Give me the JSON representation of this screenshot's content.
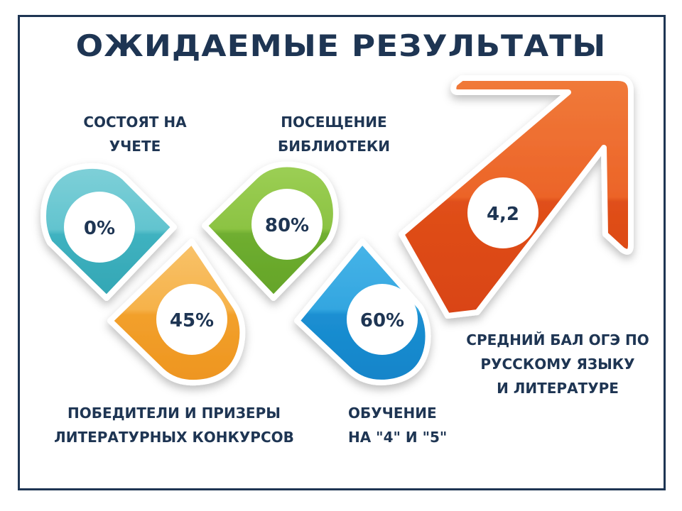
{
  "title": "ОЖИДАЕМЫЕ РЕЗУЛЬТАТЫ",
  "items": [
    {
      "value": "0%",
      "label_lines": [
        "СОСТОЯТ НА",
        "УЧЕТЕ"
      ],
      "color": "#4fc0cc"
    },
    {
      "value": "45%",
      "label_lines": [
        "ПОБЕДИТЕЛИ И ПРИЗЕРЫ",
        "ЛИТЕРАТУРНЫХ КОНКУРСОВ"
      ],
      "color": "#f5a833"
    },
    {
      "value": "80%",
      "label_lines": [
        "ПОСЕЩЕНИЕ",
        "БИБЛИОТЕКИ"
      ],
      "color": "#7cbf3a"
    },
    {
      "value": "60%",
      "label_lines": [
        "ОБУЧЕНИЕ",
        "НА \"4\" И \"5\""
      ],
      "color": "#2196d8"
    },
    {
      "value": "4,2",
      "label_lines": [
        "СРЕДНИЙ БАЛ ОГЭ ПО",
        "РУССКОМУ ЯЗЫКУ",
        "И ЛИТЕРАТУРЕ"
      ],
      "color": "#ec5d24"
    }
  ],
  "colors": {
    "navy": "#1e3553"
  }
}
